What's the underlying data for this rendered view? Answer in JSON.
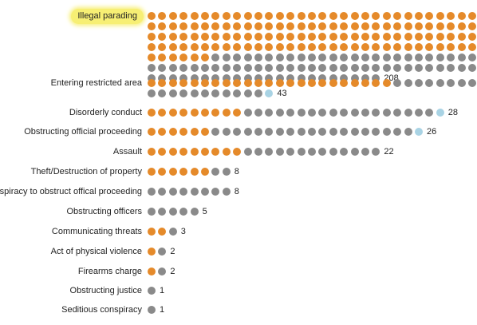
{
  "colors": {
    "orange": "#e58a2a",
    "gray": "#8a8a8a",
    "lightblue": "#a9d3e4",
    "highlight": "#f7ef74"
  },
  "chart_data": {
    "type": "dot-plot",
    "highlighted_category": "Illegal parading",
    "categories": [
      {
        "label": "Illegal parading",
        "total": 208,
        "orange": 130,
        "gray": 78,
        "lightblue": 0
      },
      {
        "label": "Entering restricted area",
        "total": 43,
        "orange": 23,
        "gray": 19,
        "lightblue": 1
      },
      {
        "label": "Disorderly conduct",
        "total": 28,
        "orange": 9,
        "gray": 18,
        "lightblue": 1
      },
      {
        "label": "Obstructing official proceeding",
        "total": 26,
        "orange": 6,
        "gray": 19,
        "lightblue": 1
      },
      {
        "label": "Assault",
        "total": 22,
        "orange": 9,
        "gray": 13,
        "lightblue": 0
      },
      {
        "label": "Theft/Destruction of property",
        "total": 8,
        "orange": 6,
        "gray": 2,
        "lightblue": 0
      },
      {
        "label": "Conspiracy to obstruct offical proceeding",
        "total": 8,
        "orange": 0,
        "gray": 8,
        "lightblue": 0
      },
      {
        "label": "Obstructing officers",
        "total": 5,
        "orange": 0,
        "gray": 5,
        "lightblue": 0
      },
      {
        "label": "Communicating threats",
        "total": 3,
        "orange": 2,
        "gray": 1,
        "lightblue": 0
      },
      {
        "label": "Act of physical violence",
        "total": 2,
        "orange": 1,
        "gray": 1,
        "lightblue": 0
      },
      {
        "label": "Firearms charge",
        "total": 2,
        "orange": 1,
        "gray": 1,
        "lightblue": 0
      },
      {
        "label": "Obstructing justice",
        "total": 1,
        "orange": 0,
        "gray": 1,
        "lightblue": 0
      },
      {
        "label": "Seditious conspiracy",
        "total": 1,
        "orange": 0,
        "gray": 1,
        "lightblue": 0
      }
    ]
  }
}
